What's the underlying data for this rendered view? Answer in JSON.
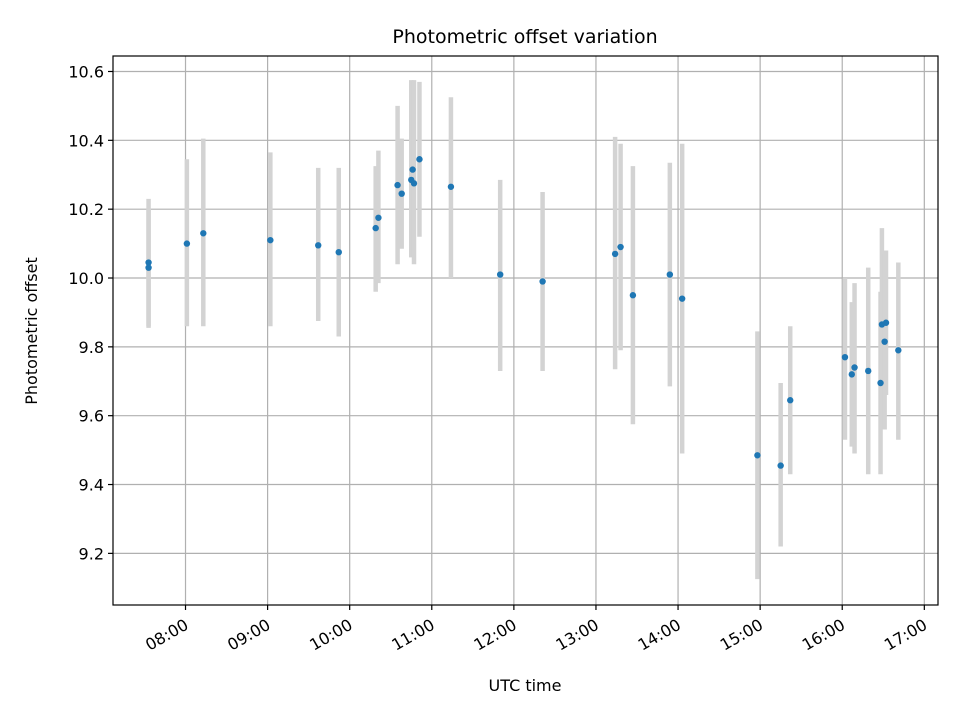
{
  "chart_data": {
    "type": "scatter",
    "title": "Photometric offset variation",
    "xlabel": "UTC time",
    "ylabel": "Photometric offset",
    "xlim": [
      "07:07",
      "17:10"
    ],
    "ylim": [
      9.05,
      10.645
    ],
    "x_ticks": [
      "08:00",
      "09:00",
      "10:00",
      "11:00",
      "12:00",
      "13:00",
      "14:00",
      "15:00",
      "16:00",
      "17:00"
    ],
    "y_ticks": [
      "9.2",
      "9.4",
      "9.6",
      "9.8",
      "10.0",
      "10.2",
      "10.4",
      "10.6"
    ],
    "grid": true,
    "colors": {
      "point": "#1f77b4",
      "errorbar": "#d3d3d3",
      "grid": "#b0b0b0"
    },
    "points": [
      {
        "t": "07:33",
        "y": 10.045,
        "lo": 9.86,
        "hi": 10.23
      },
      {
        "t": "07:33",
        "y": 10.03,
        "lo": 9.855,
        "hi": 10.2
      },
      {
        "t": "08:01",
        "y": 10.1,
        "lo": 9.86,
        "hi": 10.345
      },
      {
        "t": "08:13",
        "y": 10.13,
        "lo": 9.86,
        "hi": 10.405
      },
      {
        "t": "09:02",
        "y": 10.11,
        "lo": 9.86,
        "hi": 10.365
      },
      {
        "t": "09:37",
        "y": 10.095,
        "lo": 9.875,
        "hi": 10.32
      },
      {
        "t": "09:52",
        "y": 10.075,
        "lo": 9.83,
        "hi": 10.32
      },
      {
        "t": "10:19",
        "y": 10.145,
        "lo": 9.96,
        "hi": 10.325
      },
      {
        "t": "10:21",
        "y": 10.175,
        "lo": 9.985,
        "hi": 10.37
      },
      {
        "t": "10:35",
        "y": 10.27,
        "lo": 10.04,
        "hi": 10.5
      },
      {
        "t": "10:38",
        "y": 10.245,
        "lo": 10.085,
        "hi": 10.405
      },
      {
        "t": "10:45",
        "y": 10.285,
        "lo": 10.06,
        "hi": 10.575
      },
      {
        "t": "10:46",
        "y": 10.315,
        "lo": 10.07,
        "hi": 10.56
      },
      {
        "t": "10:47",
        "y": 10.275,
        "lo": 10.04,
        "hi": 10.575
      },
      {
        "t": "10:51",
        "y": 10.345,
        "lo": 10.12,
        "hi": 10.57
      },
      {
        "t": "11:14",
        "y": 10.265,
        "lo": 10.0,
        "hi": 10.525
      },
      {
        "t": "11:50",
        "y": 10.01,
        "lo": 9.73,
        "hi": 10.285
      },
      {
        "t": "12:21",
        "y": 9.99,
        "lo": 9.73,
        "hi": 10.25
      },
      {
        "t": "13:14",
        "y": 10.07,
        "lo": 9.735,
        "hi": 10.41
      },
      {
        "t": "13:18",
        "y": 10.09,
        "lo": 9.79,
        "hi": 10.39
      },
      {
        "t": "13:27",
        "y": 9.95,
        "lo": 9.575,
        "hi": 10.325
      },
      {
        "t": "13:54",
        "y": 10.01,
        "lo": 9.685,
        "hi": 10.335
      },
      {
        "t": "14:03",
        "y": 9.94,
        "lo": 9.49,
        "hi": 10.39
      },
      {
        "t": "14:58",
        "y": 9.485,
        "lo": 9.125,
        "hi": 9.845
      },
      {
        "t": "15:15",
        "y": 9.455,
        "lo": 9.22,
        "hi": 9.695
      },
      {
        "t": "15:22",
        "y": 9.645,
        "lo": 9.43,
        "hi": 9.86
      },
      {
        "t": "16:02",
        "y": 9.77,
        "lo": 9.53,
        "hi": 10.0
      },
      {
        "t": "16:07",
        "y": 9.72,
        "lo": 9.51,
        "hi": 9.93
      },
      {
        "t": "16:09",
        "y": 9.74,
        "lo": 9.49,
        "hi": 9.985
      },
      {
        "t": "16:19",
        "y": 9.73,
        "lo": 9.43,
        "hi": 10.03
      },
      {
        "t": "16:28",
        "y": 9.695,
        "lo": 9.43,
        "hi": 9.96
      },
      {
        "t": "16:29",
        "y": 9.865,
        "lo": 9.59,
        "hi": 10.145
      },
      {
        "t": "16:31",
        "y": 9.815,
        "lo": 9.56,
        "hi": 10.07
      },
      {
        "t": "16:32",
        "y": 9.87,
        "lo": 9.66,
        "hi": 10.08
      },
      {
        "t": "16:41",
        "y": 9.79,
        "lo": 9.53,
        "hi": 10.045
      }
    ]
  }
}
